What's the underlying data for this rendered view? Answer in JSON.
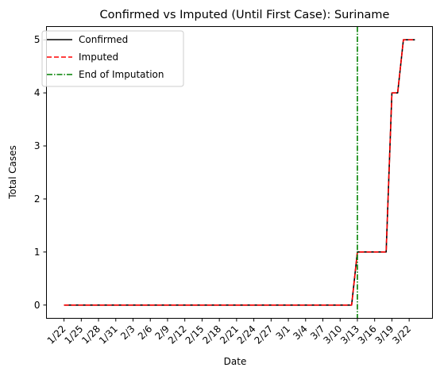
{
  "chart_data": {
    "type": "line",
    "title": "Confirmed vs Imputed (Until First Case): Suriname",
    "xlabel": "Date",
    "ylabel": "Total Cases",
    "x": [
      "1/22",
      "1/23",
      "1/24",
      "1/25",
      "1/26",
      "1/27",
      "1/28",
      "1/29",
      "1/30",
      "1/31",
      "2/1",
      "2/2",
      "2/3",
      "2/4",
      "2/5",
      "2/6",
      "2/7",
      "2/8",
      "2/9",
      "2/10",
      "2/11",
      "2/12",
      "2/13",
      "2/14",
      "2/15",
      "2/16",
      "2/17",
      "2/18",
      "2/19",
      "2/20",
      "2/21",
      "2/22",
      "2/23",
      "2/24",
      "2/25",
      "2/26",
      "2/27",
      "2/28",
      "2/29",
      "3/1",
      "3/2",
      "3/3",
      "3/4",
      "3/5",
      "3/6",
      "3/7",
      "3/8",
      "3/9",
      "3/10",
      "3/11",
      "3/12",
      "3/13",
      "3/14",
      "3/15",
      "3/16",
      "3/17",
      "3/18",
      "3/19",
      "3/20",
      "3/21",
      "3/22",
      "3/23"
    ],
    "x_tick_labels": [
      "1/22",
      "1/25",
      "1/28",
      "1/31",
      "2/3",
      "2/6",
      "2/9",
      "2/12",
      "2/15",
      "2/18",
      "2/21",
      "2/24",
      "2/27",
      "3/1",
      "3/4",
      "3/7",
      "3/10",
      "3/13",
      "3/16",
      "3/19",
      "3/22"
    ],
    "y_ticks": [
      0,
      1,
      2,
      3,
      4,
      5
    ],
    "ylim": [
      -0.25,
      5.25
    ],
    "series": [
      {
        "name": "Confirmed",
        "color": "#000000",
        "style": "solid",
        "values": [
          0,
          0,
          0,
          0,
          0,
          0,
          0,
          0,
          0,
          0,
          0,
          0,
          0,
          0,
          0,
          0,
          0,
          0,
          0,
          0,
          0,
          0,
          0,
          0,
          0,
          0,
          0,
          0,
          0,
          0,
          0,
          0,
          0,
          0,
          0,
          0,
          0,
          0,
          0,
          0,
          0,
          0,
          0,
          0,
          0,
          0,
          0,
          0,
          0,
          0,
          0,
          1,
          1,
          1,
          1,
          1,
          1,
          4,
          4,
          5,
          5,
          5
        ]
      },
      {
        "name": "Imputed",
        "color": "#ff0000",
        "style": "dashed",
        "values": [
          0,
          0,
          0,
          0,
          0,
          0,
          0,
          0,
          0,
          0,
          0,
          0,
          0,
          0,
          0,
          0,
          0,
          0,
          0,
          0,
          0,
          0,
          0,
          0,
          0,
          0,
          0,
          0,
          0,
          0,
          0,
          0,
          0,
          0,
          0,
          0,
          0,
          0,
          0,
          0,
          0,
          0,
          0,
          0,
          0,
          0,
          0,
          0,
          0,
          0,
          0,
          1,
          1,
          1,
          1,
          1,
          1,
          4,
          4,
          5,
          5,
          5
        ]
      }
    ],
    "vline": {
      "name": "End of Imputation",
      "x": "3/13",
      "color": "#008000",
      "style": "dashdot"
    },
    "legend": {
      "position": "top-left"
    },
    "grid": false
  }
}
